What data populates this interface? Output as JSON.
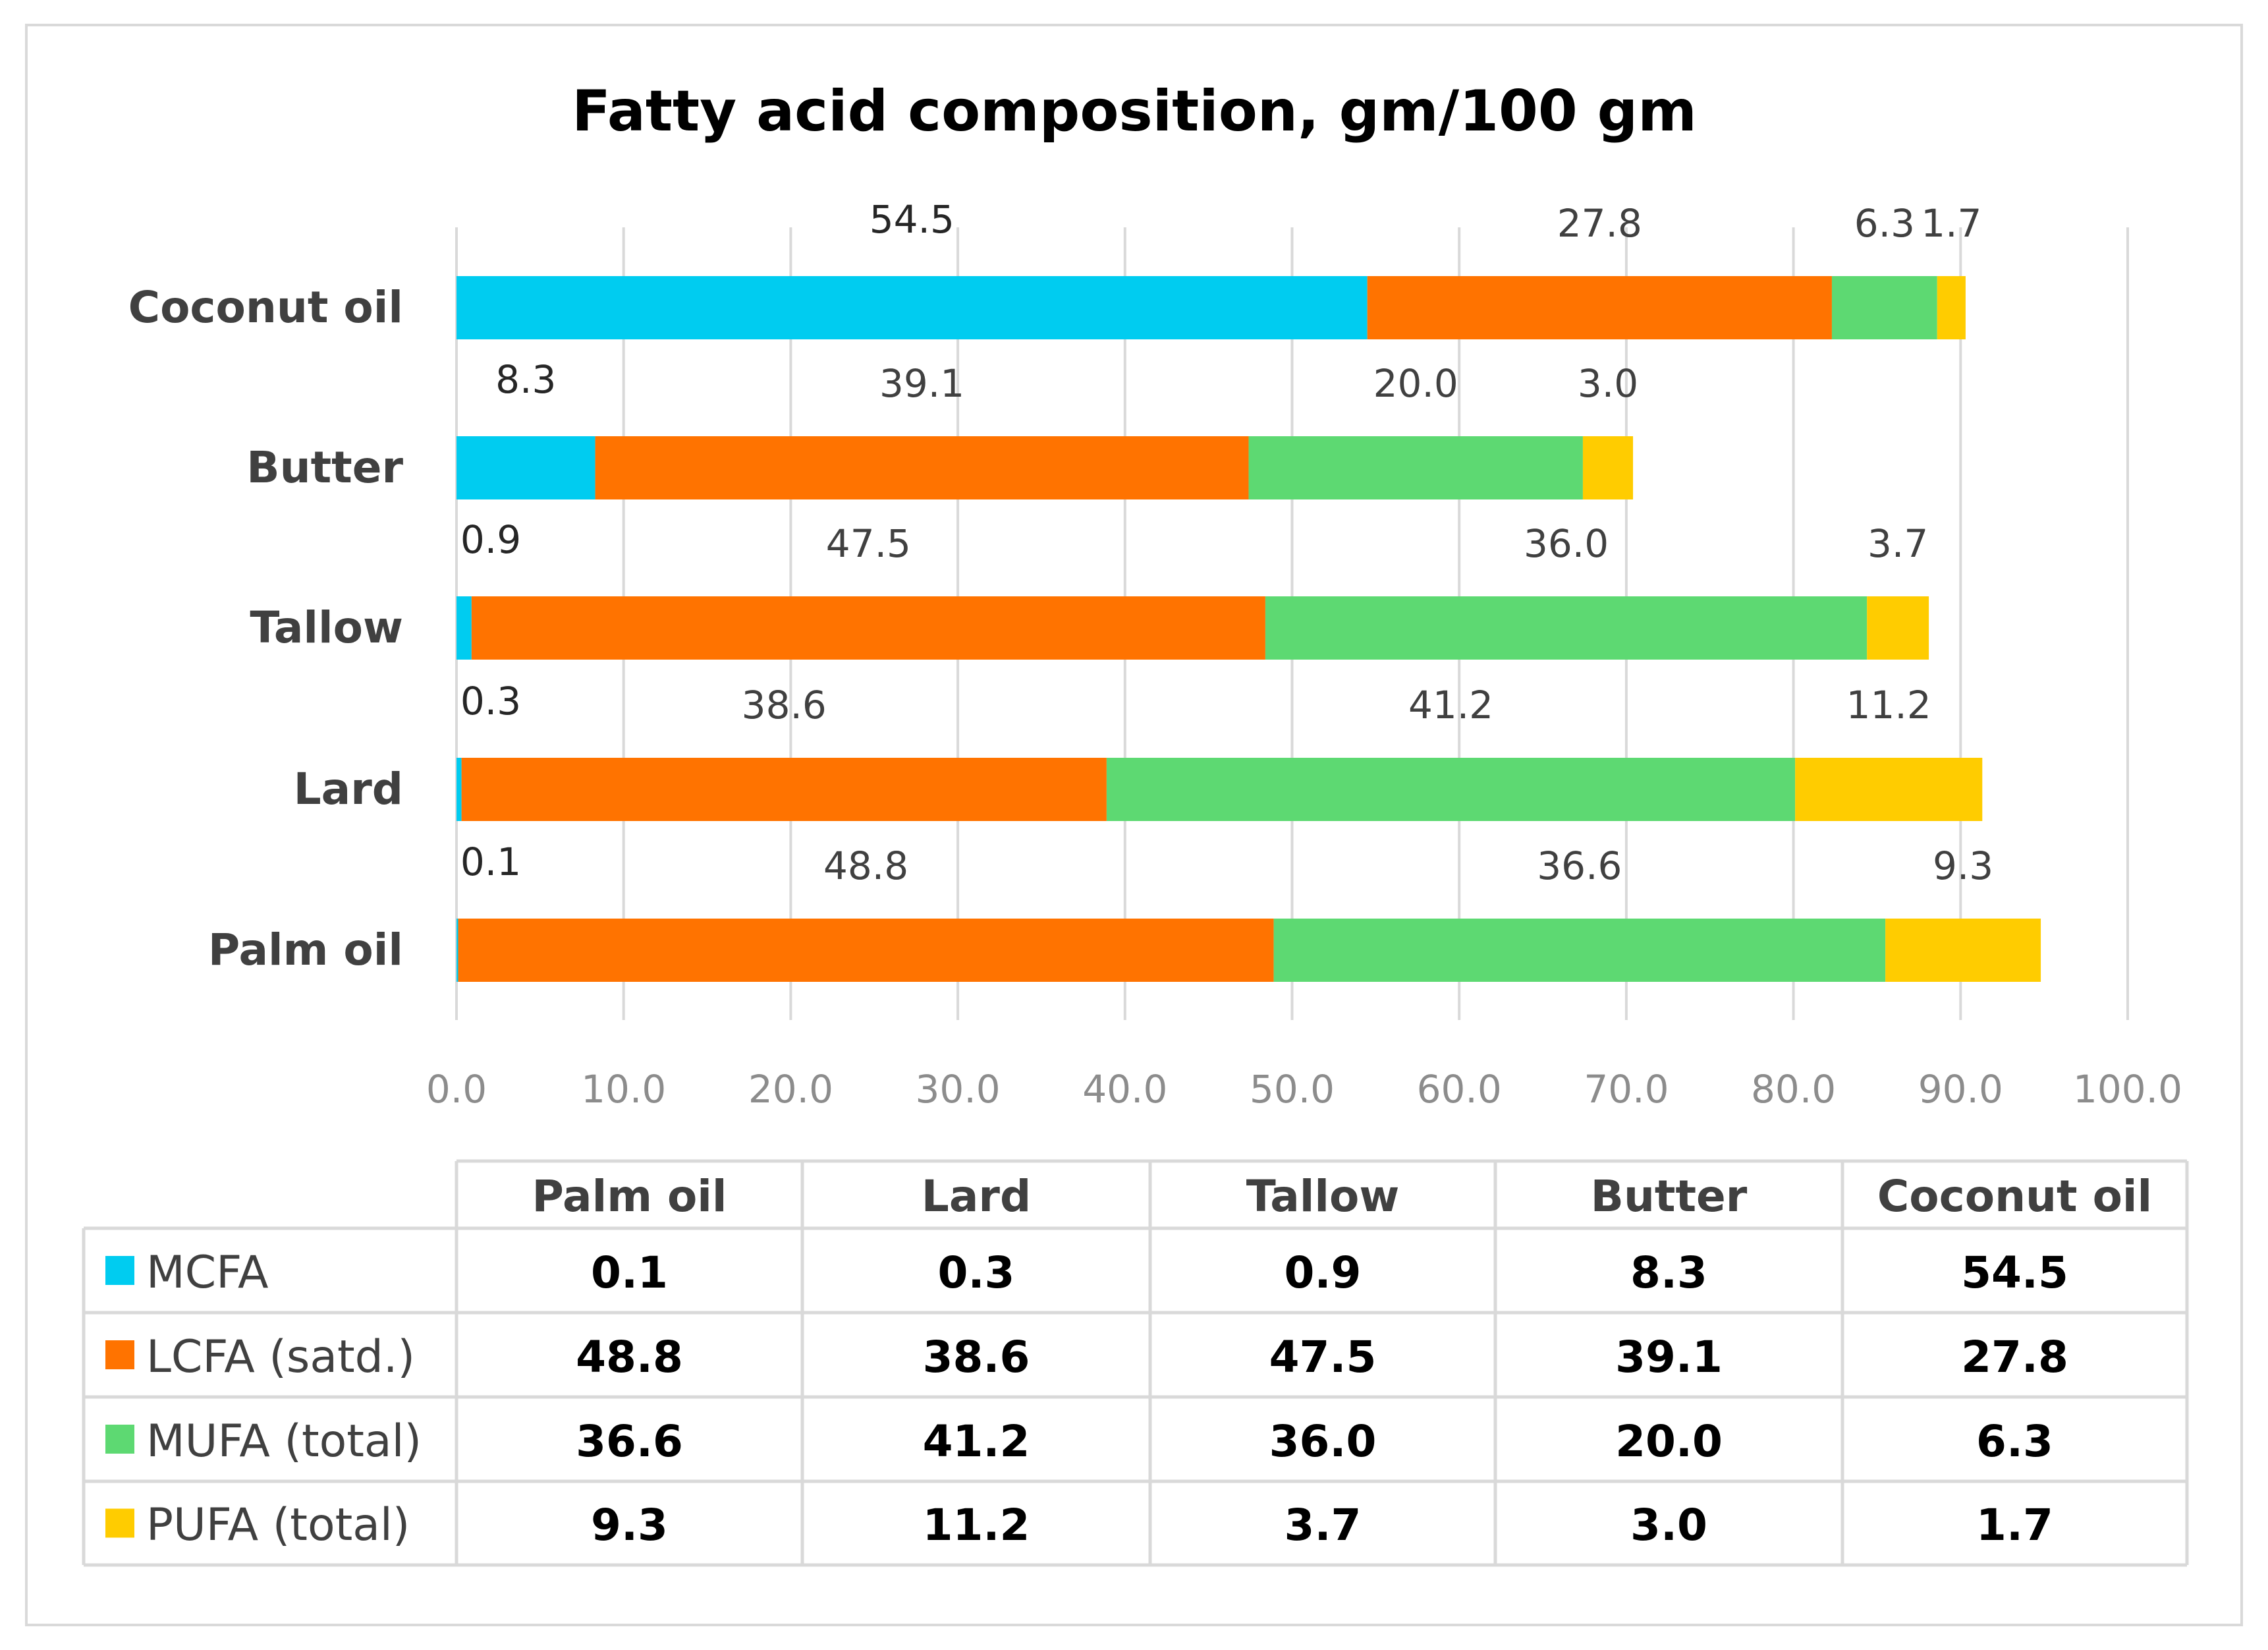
{
  "chart_data": {
    "type": "bar",
    "orientation": "horizontal",
    "stacked": true,
    "title": "Fatty acid composition, gm/100 gm",
    "xlabel": "",
    "ylabel": "",
    "xlim": [
      0,
      100
    ],
    "x_ticks": [
      "0.0",
      "10.0",
      "20.0",
      "30.0",
      "40.0",
      "50.0",
      "60.0",
      "70.0",
      "80.0",
      "90.0",
      "100.0"
    ],
    "grid": true,
    "categories": [
      "Palm oil",
      "Lard",
      "Tallow",
      "Butter",
      "Coconut oil"
    ],
    "series": [
      {
        "name": "MCFA",
        "color": "#00ccf0",
        "values": [
          0.1,
          0.3,
          0.9,
          8.3,
          54.5
        ],
        "labels": [
          "0.1",
          "0.3",
          "0.9",
          "8.3",
          "54.5"
        ]
      },
      {
        "name": "LCFA (satd.)",
        "color": "#ff7300",
        "values": [
          48.8,
          38.6,
          47.5,
          39.1,
          27.8
        ],
        "labels": [
          "48.8",
          "38.6",
          "47.5",
          "39.1",
          "27.8"
        ]
      },
      {
        "name": "MUFA (total)",
        "color": "#5dd972",
        "values": [
          36.6,
          41.2,
          36.0,
          20.0,
          6.3
        ],
        "labels": [
          "36.6",
          "41.2",
          "36.0",
          "20.0",
          "6.3"
        ]
      },
      {
        "name": "PUFA (total)",
        "color": "#ffcc00",
        "values": [
          9.3,
          11.2,
          3.7,
          3.0,
          1.7
        ],
        "labels": [
          "9.3",
          "11.2",
          "3.7",
          "3.0",
          "1.7"
        ]
      }
    ],
    "legend": "data-table-below"
  },
  "colors": {
    "grid": "#d9d9d9",
    "table_border": "#d9d9d9"
  }
}
